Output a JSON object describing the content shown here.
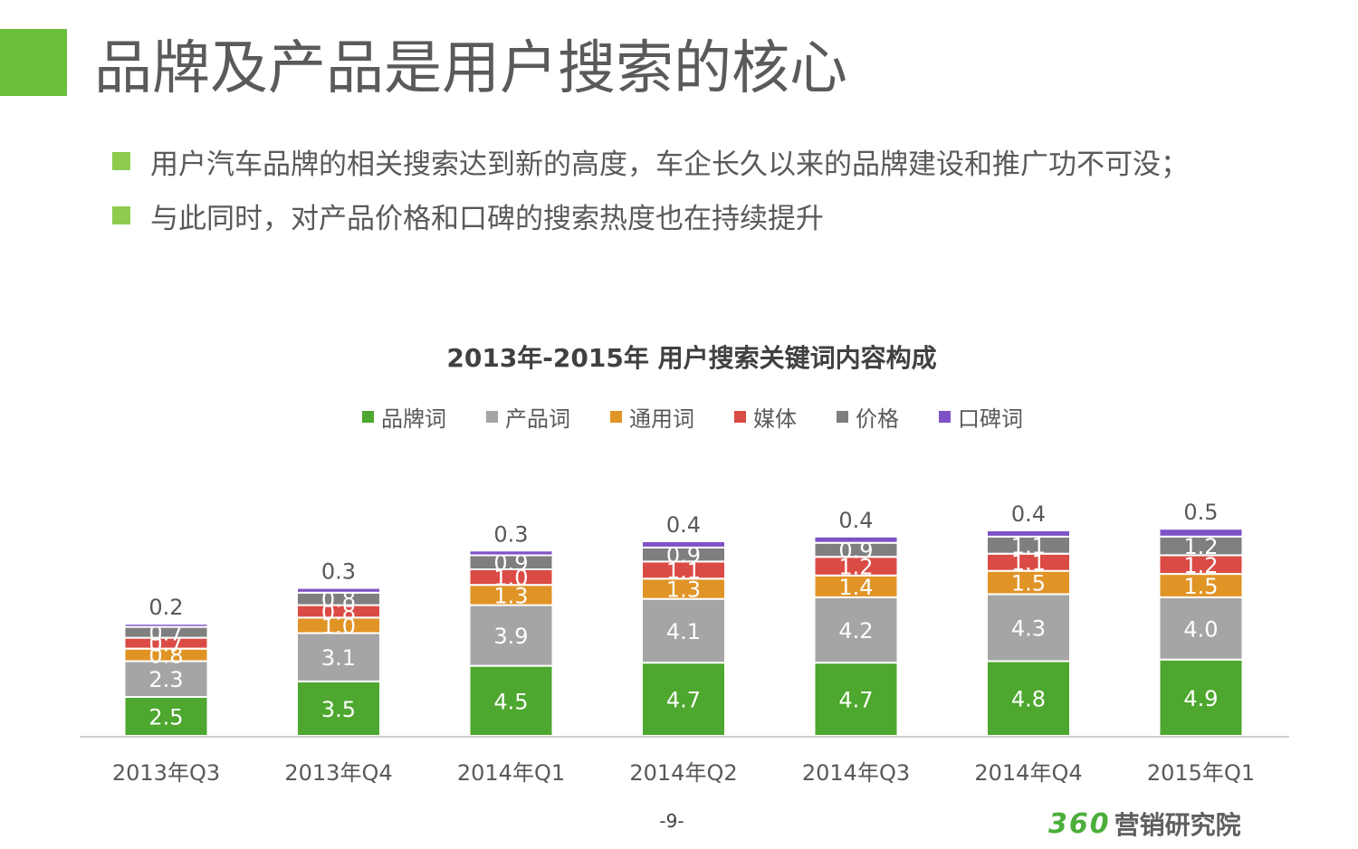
{
  "slide": {
    "title": "品牌及产品是用户搜索的核心",
    "bullets": [
      "用户汽车品牌的相关搜索达到新的高度，车企长久以来的品牌建设和推广功不可没；",
      "与此同时，对产品价格和口碑的搜索热度也在持续提升"
    ],
    "page_number": "-9-",
    "logo": {
      "number": "360",
      "text": "营销研究院"
    },
    "accent_color": "#6abf3c"
  },
  "chart_data": {
    "type": "bar",
    "stacked": true,
    "title": "2013年-2015年 用户搜索关键词内容构成",
    "xlabel": "",
    "ylabel": "",
    "legend_position": "top",
    "grid": false,
    "categories": [
      "2013年Q3",
      "2013年Q4",
      "2014年Q1",
      "2014年Q2",
      "2014年Q3",
      "2014年Q4",
      "2015年Q1"
    ],
    "series": [
      {
        "name": "品牌词",
        "color": "#4ea72e",
        "values": [
          2.5,
          3.5,
          4.5,
          4.7,
          4.7,
          4.8,
          4.9
        ]
      },
      {
        "name": "产品词",
        "color": "#a5a5a5",
        "values": [
          2.3,
          3.1,
          3.9,
          4.1,
          4.2,
          4.3,
          4.0
        ]
      },
      {
        "name": "通用词",
        "color": "#e09426",
        "values": [
          0.8,
          1.0,
          1.3,
          1.3,
          1.4,
          1.5,
          1.5
        ]
      },
      {
        "name": "媒体",
        "color": "#db4b45",
        "values": [
          0.7,
          0.8,
          1.0,
          1.1,
          1.2,
          1.1,
          1.2
        ]
      },
      {
        "name": "价格",
        "color": "#7f7f7f",
        "values": [
          0.7,
          0.8,
          0.9,
          0.9,
          0.9,
          1.1,
          1.2
        ]
      },
      {
        "name": "口碑词",
        "color": "#7f51c6",
        "values": [
          0.2,
          0.3,
          0.3,
          0.4,
          0.4,
          0.4,
          0.5
        ]
      }
    ]
  }
}
